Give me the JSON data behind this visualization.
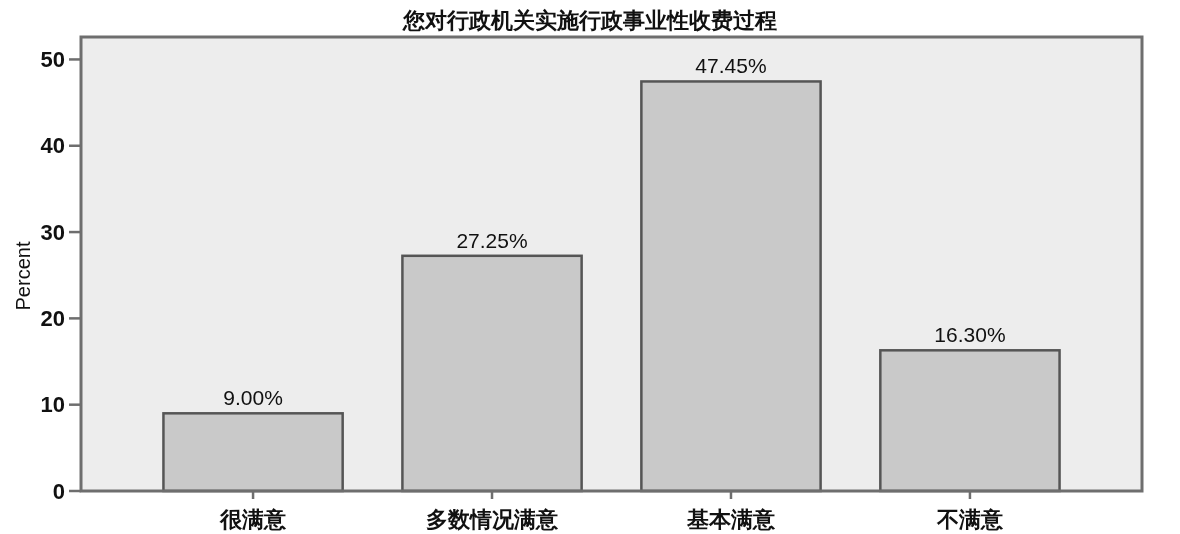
{
  "chart_data": {
    "type": "bar",
    "title": "您对行政机关实施行政事业性收费过程",
    "ylabel": "Percent",
    "categories": [
      "很满意",
      "多数情况满意",
      "基本满意",
      "不满意"
    ],
    "values": [
      9.0,
      27.25,
      47.45,
      16.3
    ],
    "value_labels": [
      "9.00%",
      "27.25%",
      "47.45%",
      "16.30%"
    ],
    "color": "#c9c9c9",
    "ylim": [
      0,
      52.6
    ],
    "yticks": [
      0,
      10,
      20,
      30,
      40,
      50
    ]
  }
}
